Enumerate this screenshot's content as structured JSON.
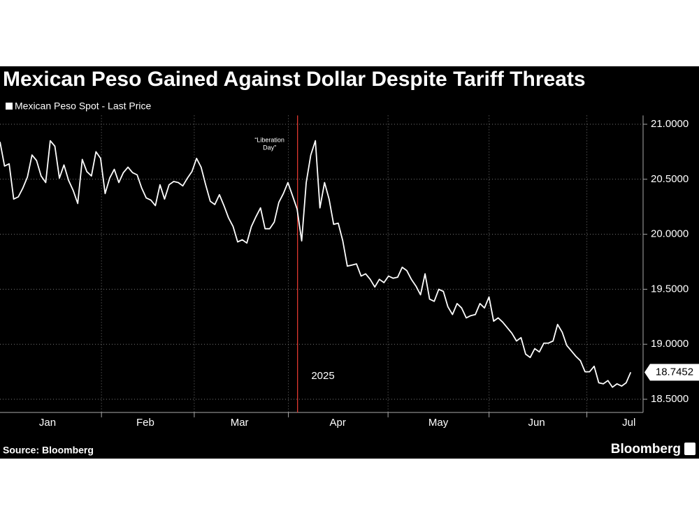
{
  "chart_data": {
    "type": "line",
    "title": "Mexican Peso Gained Against Dollar Despite Tariff Threats",
    "series": [
      {
        "name": "Mexican Peso Spot - Last Price",
        "color": "#ffffff",
        "values": [
          20.84,
          20.62,
          20.64,
          20.32,
          20.34,
          20.42,
          20.52,
          20.72,
          20.67,
          20.53,
          20.47,
          20.85,
          20.8,
          20.51,
          20.63,
          20.49,
          20.4,
          20.28,
          20.68,
          20.57,
          20.53,
          20.75,
          20.69,
          20.37,
          20.51,
          20.59,
          20.47,
          20.56,
          20.61,
          20.56,
          20.54,
          20.42,
          20.33,
          20.31,
          20.26,
          20.45,
          20.32,
          20.45,
          20.48,
          20.47,
          20.44,
          20.51,
          20.57,
          20.69,
          20.61,
          20.45,
          20.3,
          20.27,
          20.36,
          20.26,
          20.15,
          20.07,
          19.93,
          19.95,
          19.92,
          20.07,
          20.16,
          20.24,
          20.05,
          20.05,
          20.11,
          20.29,
          20.37,
          20.47,
          20.35,
          20.23,
          19.94,
          20.47,
          20.72,
          20.85,
          20.24,
          20.47,
          20.32,
          20.09,
          20.1,
          19.94,
          19.71,
          19.72,
          19.73,
          19.62,
          19.64,
          19.59,
          19.52,
          19.59,
          19.56,
          19.62,
          19.6,
          19.61,
          19.7,
          19.67,
          19.59,
          19.53,
          19.45,
          19.64,
          19.41,
          19.39,
          19.5,
          19.48,
          19.34,
          19.27,
          19.37,
          19.33,
          19.24,
          19.26,
          19.27,
          19.37,
          19.33,
          19.43,
          19.21,
          19.24,
          19.2,
          19.15,
          19.1,
          19.03,
          19.06,
          18.91,
          18.88,
          18.96,
          18.93,
          19.01,
          19.01,
          19.03,
          19.18,
          19.11,
          18.99,
          18.94,
          18.89,
          18.85,
          18.75,
          18.75,
          18.8,
          18.65,
          18.64,
          18.67,
          18.61,
          18.64,
          18.62,
          18.65,
          18.7452
        ]
      }
    ],
    "xlim": [
      0,
      140.7
    ],
    "xticks": [
      {
        "value": 10.4,
        "label": "Jan"
      },
      {
        "value": 31.8,
        "label": "Feb"
      },
      {
        "value": 52.4,
        "label": "Mar"
      },
      {
        "value": 73.9,
        "label": "Apr"
      },
      {
        "value": 95.9,
        "label": "May"
      },
      {
        "value": 117.4,
        "label": "Jun"
      },
      {
        "value": 137.6,
        "label": "Jul"
      }
    ],
    "xgrid": [
      22.2,
      42.5,
      63.1,
      84.9,
      107.0,
      128.4
    ],
    "xlabel": "2025",
    "ylim": [
      18.38,
      21.08
    ],
    "yticks": [
      {
        "value": 21,
        "label": "21.0000"
      },
      {
        "value": 20.5,
        "label": "20.5000"
      },
      {
        "value": 20,
        "label": "20.0000"
      },
      {
        "value": 19.5,
        "label": "19.5000"
      },
      {
        "value": 19,
        "label": "19.0000"
      },
      {
        "value": 18.5,
        "label": "18.5000"
      }
    ],
    "grid": true,
    "annotation": {
      "text": [
        "“Liberation",
        "Day”"
      ],
      "x": 65.1,
      "color": "#e03a2f"
    },
    "source": "Source: Bloomberg",
    "brand": "Bloomberg"
  }
}
